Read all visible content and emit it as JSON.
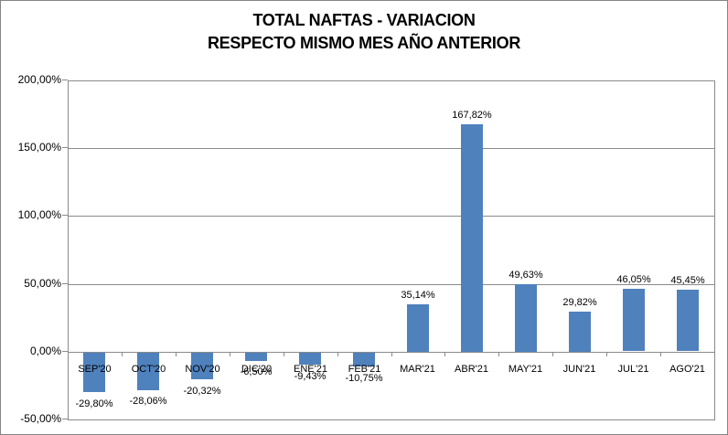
{
  "title": {
    "line1": "TOTAL NAFTAS - VARIACION",
    "line2": "RESPECTO MISMO MES AÑO ANTERIOR"
  },
  "chart_data": {
    "type": "bar",
    "title": "TOTAL NAFTAS - VARIACION RESPECTO MISMO MES AÑO ANTERIOR",
    "categories": [
      "SEP'20",
      "OCT'20",
      "NOV'20",
      "DIC'20",
      "ENE'21",
      "FEB'21",
      "MAR'21",
      "ABR'21",
      "MAY'21",
      "JUN'21",
      "JUL'21",
      "AGO'21"
    ],
    "values": [
      -29.8,
      -28.06,
      -20.32,
      -6.5,
      -9.43,
      -10.75,
      35.14,
      167.82,
      49.63,
      29.82,
      46.05,
      45.45
    ],
    "data_labels": [
      "-29,80%",
      "-28,06%",
      "-20,32%",
      "-6,50%",
      "-9,43%",
      "-10,75%",
      "35,14%",
      "167,82%",
      "49,63%",
      "29,82%",
      "46,05%",
      "45,45%"
    ],
    "xlabel": "",
    "ylabel": "",
    "ylim": [
      -50,
      200
    ],
    "yticks": [
      200,
      150,
      100,
      50,
      0,
      -50
    ],
    "ytick_labels": [
      "200,00%",
      "150,00%",
      "100,00%",
      "50,00%",
      "0,00%",
      "-50,00%"
    ],
    "grid": true,
    "legend": false,
    "bar_color": "#4F81BD",
    "gridline_color": "#8a8a8a",
    "text_color": "#000000",
    "background_color": "#ffffff"
  }
}
